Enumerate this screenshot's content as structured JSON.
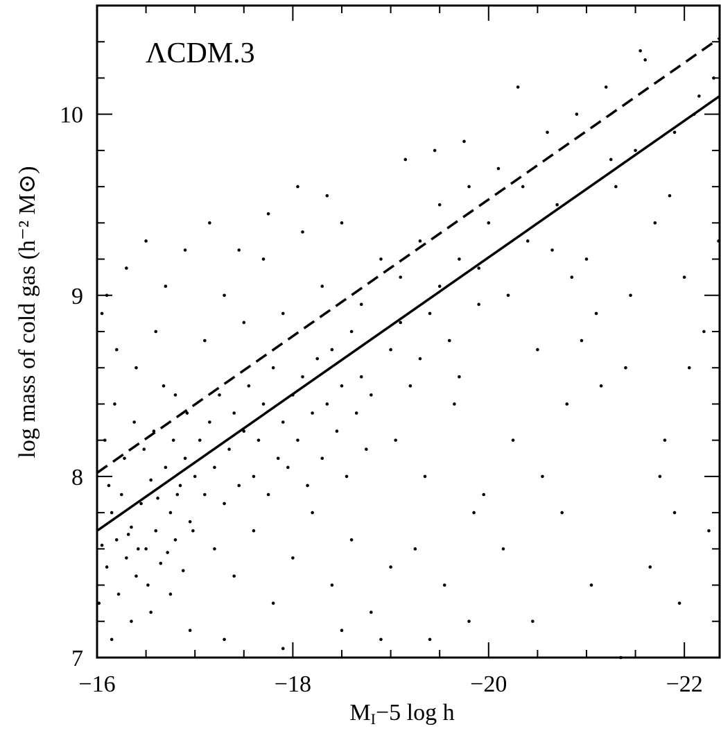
{
  "chart_data": {
    "type": "scatter",
    "annotation": "ΛCDM.3",
    "xlabel_parts": [
      "M",
      "I",
      "−5 log h"
    ],
    "ylabel": "log mass of cold gas (h⁻² M⊙)",
    "xlim": [
      -16,
      -22.36
    ],
    "ylim": [
      7,
      10.6
    ],
    "xticks": [
      {
        "value": -16,
        "label": "−16"
      },
      {
        "value": -18,
        "label": "−18"
      },
      {
        "value": -20,
        "label": "−20"
      },
      {
        "value": -22,
        "label": "−22"
      }
    ],
    "yticks": [
      7,
      8,
      9,
      10
    ],
    "xminorticks": [
      -16.5,
      -17,
      -17.5,
      -18.5,
      -19,
      -19.5,
      -20.5,
      -21,
      -21.5
    ],
    "yminorticks": [
      7.2,
      7.4,
      7.6,
      7.8,
      8.2,
      8.4,
      8.6,
      8.8,
      9.2,
      9.4,
      9.6,
      9.8,
      10.2,
      10.4
    ],
    "color": "#000000",
    "points": {
      "x": [
        -16.05,
        -16.1,
        -16.15,
        -16.2,
        -16.25,
        -16.3,
        -16.35,
        -16.4,
        -16.45,
        -16.5,
        -16.55,
        -16.6,
        -16.65,
        -16.7,
        -16.75,
        -16.8,
        -16.85,
        -16.9,
        -16.95,
        -17.0,
        -16.02,
        -16.08,
        -16.12,
        -16.18,
        -16.22,
        -16.28,
        -16.32,
        -16.38,
        -16.42,
        -16.48,
        -16.52,
        -16.58,
        -16.62,
        -16.68,
        -16.72,
        -16.78,
        -16.82,
        -16.88,
        -16.92,
        -16.98,
        -16.05,
        -16.1,
        -16.2,
        -16.3,
        -16.4,
        -16.5,
        -16.6,
        -16.7,
        -16.8,
        -16.9,
        -16.15,
        -16.35,
        -16.55,
        -16.75,
        -16.95,
        -17.05,
        -17.1,
        -17.15,
        -17.2,
        -17.25,
        -17.3,
        -17.35,
        -17.4,
        -17.45,
        -17.5,
        -17.55,
        -17.6,
        -17.65,
        -17.7,
        -17.75,
        -17.8,
        -17.85,
        -17.9,
        -17.95,
        -18.0,
        -18.05,
        -18.1,
        -18.15,
        -18.2,
        -18.25,
        -18.3,
        -18.35,
        -18.4,
        -18.45,
        -18.5,
        -18.55,
        -18.6,
        -18.65,
        -18.7,
        -18.75,
        -18.8,
        -17.1,
        -17.3,
        -17.5,
        -17.7,
        -17.9,
        -18.1,
        -18.3,
        -18.5,
        -18.7,
        -18.9,
        -17.2,
        -17.4,
        -17.6,
        -17.8,
        -18.0,
        -18.2,
        -18.4,
        -18.6,
        -18.8,
        -19.0,
        -17.15,
        -17.45,
        -17.75,
        -18.05,
        -18.35,
        -17.3,
        -17.9,
        -18.5,
        -18.9,
        -19.0,
        -19.1,
        -19.2,
        -19.3,
        -19.4,
        -19.5,
        -19.6,
        -19.7,
        -19.8,
        -19.9,
        -20.0,
        -19.15,
        -19.45,
        -19.75,
        -19.05,
        -19.35,
        -19.65,
        -19.95,
        -19.25,
        -19.55,
        -19.85,
        -19.1,
        -19.3,
        -19.5,
        -19.7,
        -19.9,
        -19.4,
        -19.8,
        -20.1,
        -20.2,
        -20.3,
        -20.4,
        -20.5,
        -20.6,
        -20.7,
        -20.8,
        -20.9,
        -21.0,
        -21.1,
        -21.2,
        -21.3,
        -21.4,
        -21.5,
        -21.6,
        -21.7,
        -21.8,
        -21.9,
        -22.0,
        -22.1,
        -22.2,
        -22.3,
        -20.15,
        -20.45,
        -20.75,
        -21.05,
        -21.35,
        -21.65,
        -21.95,
        -22.25,
        -20.25,
        -20.55,
        -20.85,
        -21.15,
        -21.45,
        -21.75,
        -22.05,
        -22.35,
        -20.35,
        -20.65,
        -20.95,
        -21.25,
        -21.55,
        -21.85,
        -22.15,
        -21.9
      ],
      "y": [
        7.62,
        7.5,
        7.8,
        7.65,
        7.9,
        7.55,
        7.72,
        7.45,
        7.85,
        7.6,
        7.98,
        7.7,
        7.52,
        8.05,
        7.8,
        7.65,
        7.95,
        8.1,
        7.75,
        8.0,
        7.3,
        8.2,
        7.95,
        8.4,
        7.35,
        8.1,
        7.68,
        8.3,
        7.6,
        8.15,
        7.4,
        8.25,
        7.88,
        8.5,
        7.58,
        8.2,
        7.9,
        7.48,
        8.35,
        7.7,
        8.9,
        9.0,
        8.7,
        9.15,
        8.6,
        9.3,
        8.8,
        9.05,
        8.45,
        9.25,
        7.1,
        7.2,
        7.25,
        7.35,
        7.15,
        8.2,
        7.9,
        8.3,
        8.05,
        8.45,
        7.85,
        8.15,
        8.35,
        7.95,
        8.25,
        8.5,
        8.0,
        8.2,
        8.4,
        7.9,
        8.6,
        8.1,
        8.3,
        8.05,
        8.45,
        8.2,
        8.55,
        7.95,
        8.35,
        8.65,
        8.1,
        8.4,
        8.7,
        8.25,
        8.5,
        8.0,
        8.8,
        8.35,
        8.55,
        8.15,
        8.45,
        8.75,
        9.0,
        8.85,
        9.2,
        8.9,
        9.35,
        9.05,
        9.4,
        8.95,
        9.2,
        7.6,
        7.45,
        7.7,
        7.3,
        7.55,
        7.8,
        7.4,
        7.65,
        7.25,
        7.5,
        9.4,
        9.25,
        9.45,
        9.6,
        9.55,
        7.1,
        7.05,
        7.15,
        7.1,
        8.7,
        9.1,
        8.5,
        9.3,
        8.9,
        9.5,
        8.75,
        9.2,
        9.6,
        8.95,
        9.4,
        9.75,
        9.8,
        9.85,
        8.2,
        8.0,
        8.4,
        7.9,
        7.6,
        7.4,
        7.8,
        8.85,
        8.65,
        9.05,
        8.55,
        9.15,
        7.1,
        7.2,
        9.7,
        9.0,
        10.15,
        9.3,
        8.7,
        9.9,
        9.5,
        8.4,
        10.0,
        9.2,
        8.9,
        10.15,
        9.6,
        8.6,
        9.8,
        10.3,
        9.4,
        8.2,
        9.9,
        9.1,
        10.0,
        8.8,
        10.2,
        7.6,
        7.2,
        7.8,
        7.4,
        7.0,
        7.5,
        7.3,
        7.7,
        8.2,
        8.0,
        9.1,
        8.5,
        9.0,
        8.0,
        8.6,
        9.3,
        9.6,
        9.25,
        8.75,
        9.75,
        10.35,
        9.55,
        10.1,
        7.8
      ]
    },
    "lines": [
      {
        "style": "solid",
        "x": [
          -16,
          -22.36
        ],
        "y": [
          7.7,
          10.1
        ]
      },
      {
        "style": "dashed",
        "x": [
          -16,
          -22.36
        ],
        "y": [
          8.02,
          10.42
        ]
      }
    ]
  }
}
